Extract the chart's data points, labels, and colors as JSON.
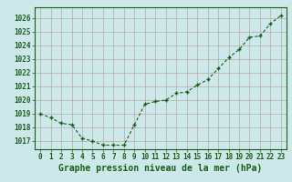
{
  "x": [
    0,
    1,
    2,
    3,
    4,
    5,
    6,
    7,
    8,
    9,
    10,
    11,
    12,
    13,
    14,
    15,
    16,
    17,
    18,
    19,
    20,
    21,
    22,
    23
  ],
  "y": [
    1019.0,
    1018.7,
    1018.3,
    1018.2,
    1017.2,
    1017.0,
    1016.7,
    1016.7,
    1016.7,
    1018.2,
    1019.7,
    1019.9,
    1020.0,
    1020.5,
    1020.6,
    1021.1,
    1021.5,
    1022.3,
    1023.1,
    1023.7,
    1024.6,
    1024.7,
    1025.6,
    1026.2
  ],
  "ylim": [
    1016.4,
    1026.8
  ],
  "yticks": [
    1017,
    1018,
    1019,
    1020,
    1021,
    1022,
    1023,
    1024,
    1025,
    1026
  ],
  "xticks": [
    0,
    1,
    2,
    3,
    4,
    5,
    6,
    7,
    8,
    9,
    10,
    11,
    12,
    13,
    14,
    15,
    16,
    17,
    18,
    19,
    20,
    21,
    22,
    23
  ],
  "xlabel": "Graphe pression niveau de la mer (hPa)",
  "line_color": "#1a5c1a",
  "marker_color": "#1a5c1a",
  "bg_color": "#cce8e8",
  "grid_color": "#b8a8a8",
  "tick_label_fontsize": 5.5,
  "xlabel_fontsize": 7,
  "xlim": [
    -0.5,
    23.5
  ]
}
